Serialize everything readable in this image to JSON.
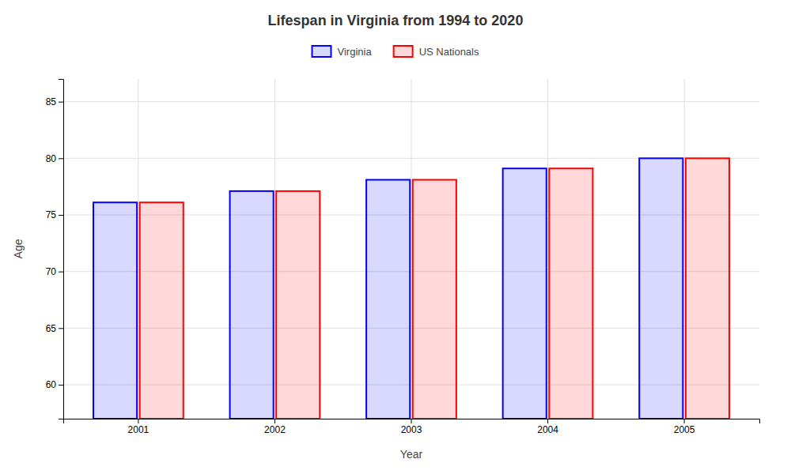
{
  "chart_data": {
    "type": "bar",
    "title": "Lifespan in Virginia from 1994 to 2020",
    "xlabel": "Year",
    "ylabel": "Age",
    "categories": [
      "2001",
      "2002",
      "2003",
      "2004",
      "2005"
    ],
    "series": [
      {
        "name": "Virginia",
        "color": "#0000ff",
        "values": [
          76.1,
          77.1,
          78.1,
          79.1,
          80.0
        ]
      },
      {
        "name": "US Nationals",
        "color": "#ff0000",
        "values": [
          76.1,
          77.1,
          78.1,
          79.1,
          80.0
        ]
      }
    ],
    "ylim": [
      57,
      87
    ],
    "yticks": [
      60,
      65,
      70,
      75,
      80,
      85
    ],
    "grid": true,
    "legend": "top"
  }
}
